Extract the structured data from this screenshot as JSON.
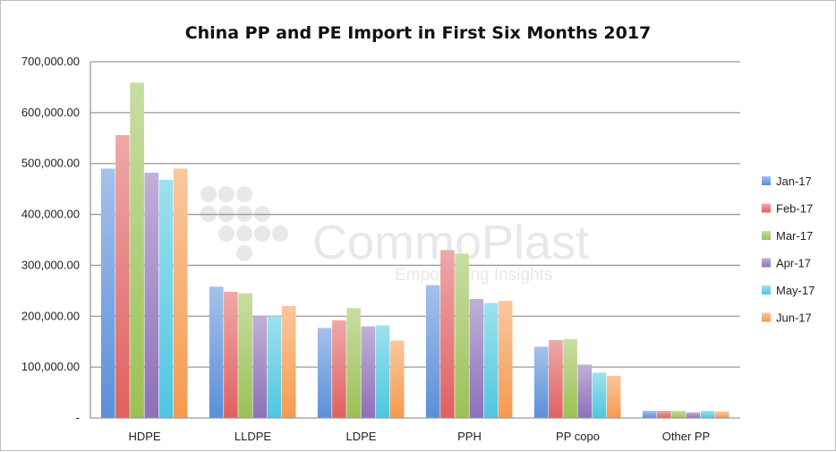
{
  "chart_data": {
    "type": "bar",
    "title": "China PP and PE Import in First Six Months 2017",
    "xlabel": "",
    "ylabel": "",
    "categories": [
      "HDPE",
      "LLDPE",
      "LDPE",
      "PPH",
      "PP copo",
      "Other PP"
    ],
    "ylim": [
      0,
      700000
    ],
    "yticks": [
      0,
      100000,
      200000,
      300000,
      400000,
      500000,
      600000,
      700000
    ],
    "ytick_labels": [
      "-",
      "100,000.00",
      "200,000.00",
      "300,000.00",
      "400,000.00",
      "500,000.00",
      "600,000.00",
      "700,000.00"
    ],
    "grid": true,
    "legend_position": "right",
    "series": [
      {
        "name": "Jan-17",
        "color": "#5b8fd9",
        "values": [
          490000,
          258000,
          177000,
          261000,
          140000,
          14000
        ]
      },
      {
        "name": "Feb-17",
        "color": "#e06060",
        "values": [
          556000,
          248000,
          192000,
          330000,
          153000,
          14000
        ]
      },
      {
        "name": "Mar-17",
        "color": "#9bc155",
        "values": [
          659000,
          245000,
          216000,
          323000,
          155000,
          14000
        ]
      },
      {
        "name": "Apr-17",
        "color": "#8d70b8",
        "values": [
          482000,
          200000,
          180000,
          234000,
          105000,
          11000
        ]
      },
      {
        "name": "May-17",
        "color": "#4fc6e0",
        "values": [
          468000,
          200000,
          182000,
          226000,
          89000,
          14000
        ]
      },
      {
        "name": "Jun-17",
        "color": "#f59a4f",
        "values": [
          490000,
          220000,
          152000,
          230000,
          83000,
          13000
        ]
      }
    ]
  },
  "watermark": {
    "brand": "CommoPlast",
    "tagline": "Empowering Insights"
  }
}
